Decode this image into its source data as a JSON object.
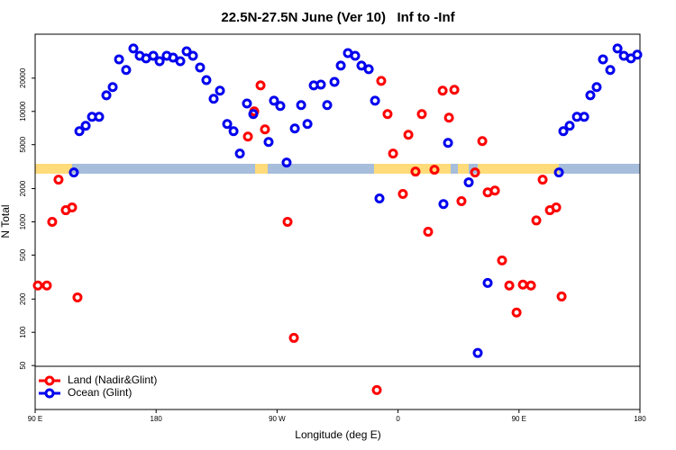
{
  "chart_data": {
    "type": "scatter",
    "title": "22.5N-27.5N June (Ver 10)   Inf to -Inf",
    "x_label": "Longitude (deg E)",
    "y_label": "N Total",
    "log_y": true,
    "legend": "bottom-left",
    "xlim": [
      90,
      540
    ],
    "ylim": [
      20,
      50000
    ],
    "xticks": [
      {
        "value": 90,
        "label": "90 E"
      },
      180,
      {
        "value": 270,
        "label": "90 W"
      },
      0,
      {
        "value": 450,
        "label": "90 E"
      },
      180
    ],
    "yticks": [
      50,
      100,
      200,
      500,
      1000,
      2000,
      5000,
      10000,
      20000
    ],
    "series": [
      {
        "name": "Land (Nadir&Glint)",
        "color": "#ff0000",
        "x": [
          92.0,
          98.7,
          102.7,
          107.4,
          112.8,
          117.5,
          121.5,
          248.3,
          253.0,
          257.7,
          261.0,
          277.8,
          282.5,
          344.2,
          347.5,
          352.2,
          356.3,
          363.6,
          367.7,
          373.0,
          377.7,
          382.4,
          387.1,
          393.2,
          397.9,
          401.9,
          407.2,
          417.3,
          422.7,
          426.7,
          432.1,
          437.4,
          442.8,
          448.2,
          452.9,
          458.9,
          462.9,
          467.6,
          473.0,
          477.7,
          481.7
        ],
        "values": [
          265,
          265,
          1000,
          2410,
          1275,
          1350,
          207,
          5920,
          10000,
          17200,
          6870,
          1000,
          89,
          30,
          18900,
          9450,
          4150,
          1790,
          6140,
          2850,
          9450,
          813,
          2960,
          15400,
          8770,
          15700,
          1540,
          2800,
          5390,
          1850,
          1920,
          447,
          265,
          151,
          270,
          265,
          1030,
          2410,
          1275,
          1350,
          211
        ]
      },
      {
        "name": "Ocean (Glint)",
        "color": "#0000ee",
        "x": [
          118.8,
          122.9,
          127.6,
          132.3,
          137.6,
          143.0,
          147.7,
          152.4,
          157.7,
          163.1,
          167.8,
          172.5,
          177.9,
          182.6,
          187.9,
          192.6,
          198.0,
          202.7,
          207.4,
          212.7,
          217.4,
          222.8,
          227.5,
          232.9,
          237.6,
          242.3,
          247.6,
          252.3,
          263.7,
          267.7,
          272.4,
          277.1,
          283.2,
          287.9,
          292.6,
          297.3,
          302.6,
          307.3,
          312.7,
          317.4,
          322.7,
          328.1,
          332.8,
          338.2,
          342.9,
          346.2,
          393.8,
          397.2,
          412.6,
          419.3,
          426.7,
          479.7,
          483.0,
          487.7,
          493.1,
          498.5,
          503.1,
          507.8,
          512.5,
          517.9,
          523.3,
          528.0,
          533.3,
          538.0
        ],
        "values": [
          2800,
          6620,
          7410,
          8930,
          8930,
          14000,
          16600,
          29600,
          23700,
          37100,
          31900,
          30200,
          31900,
          28500,
          31900,
          30700,
          28500,
          35000,
          31900,
          25000,
          19200,
          13000,
          15400,
          7690,
          6620,
          4150,
          11800,
          9450,
          5290,
          12500,
          11200,
          3440,
          7000,
          11400,
          7690,
          17200,
          17500,
          11400,
          18500,
          26000,
          33700,
          31900,
          26000,
          24100,
          12500,
          1630,
          1450,
          5190,
          2280,
          65,
          280,
          2800,
          6620,
          7410,
          8930,
          8930,
          14000,
          16600,
          29600,
          23700,
          37100,
          31900,
          30200,
          32600
        ]
      }
    ]
  }
}
